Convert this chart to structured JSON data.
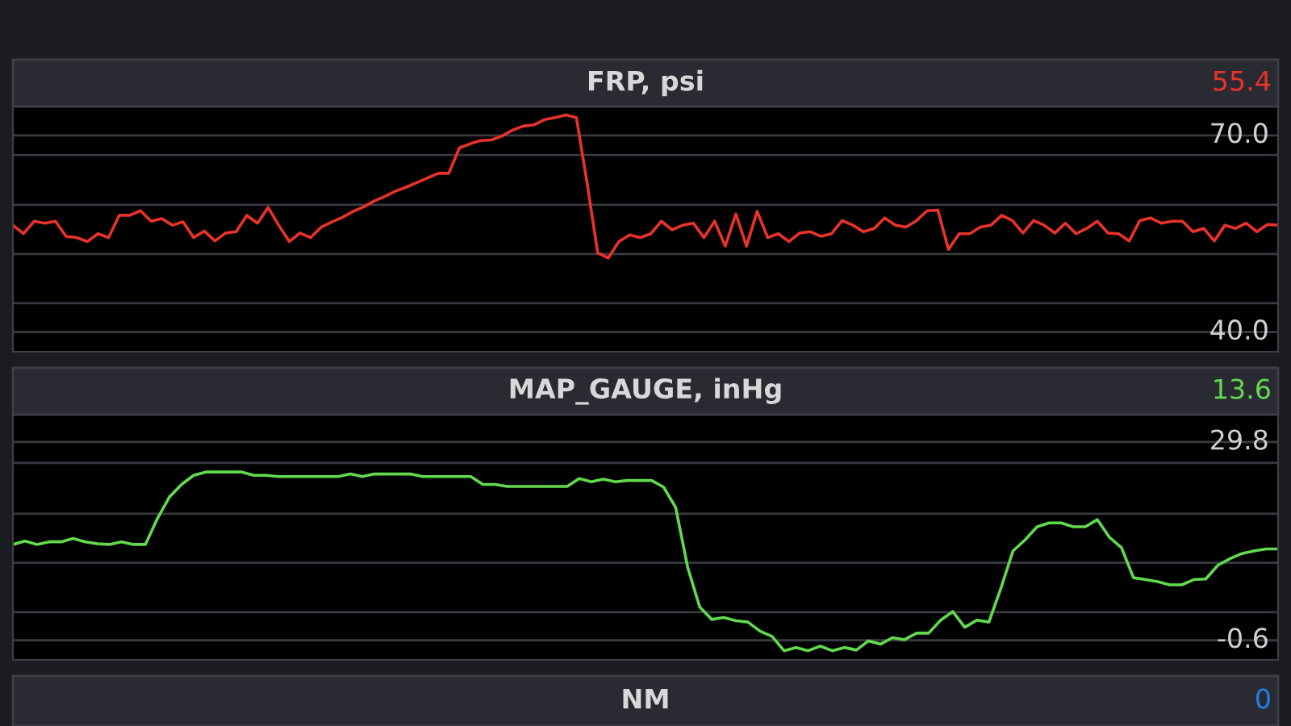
{
  "chart_data": [
    {
      "type": "line",
      "title": "FRP, psi",
      "annotations": [
        "55.4"
      ],
      "categories": [
        null,
        null,
        null,
        null,
        null,
        null,
        null,
        null,
        null,
        null,
        null,
        null,
        null,
        null,
        null,
        null,
        null,
        null,
        null,
        null,
        null,
        null,
        null,
        null,
        null,
        null,
        null,
        null,
        null,
        null,
        null,
        null,
        null,
        null,
        null,
        null,
        null,
        null,
        null,
        null,
        null,
        null,
        null,
        null,
        null,
        null,
        null,
        null,
        null,
        null,
        null,
        null,
        null,
        null,
        null,
        null,
        null,
        null,
        null,
        null,
        null,
        null,
        null,
        null,
        null,
        null,
        null,
        null,
        null,
        null,
        null,
        null,
        null,
        null,
        null,
        null,
        null,
        null,
        null,
        null,
        null,
        null,
        null,
        null,
        null,
        null,
        null,
        null,
        null,
        null,
        null,
        null,
        null,
        null,
        null,
        null,
        null,
        null,
        null,
        null,
        null,
        null,
        null,
        null,
        null,
        null,
        null,
        null,
        null,
        null,
        null,
        null,
        null,
        null,
        null,
        null,
        null,
        null,
        null,
        null
      ],
      "series": [
        {
          "color": "#e8322a",
          "values": [
            56.3,
            55.0,
            56.9,
            56.6,
            56.9,
            54.6,
            54.4,
            53.8,
            55.0,
            54.4,
            57.8,
            57.8,
            58.5,
            56.9,
            57.3,
            56.3,
            56.8,
            54.4,
            55.4,
            53.9,
            55.1,
            55.3,
            57.8,
            56.6,
            59.0,
            56.3,
            53.8,
            55.1,
            54.4,
            56.0,
            56.8,
            57.5,
            58.4,
            59.1,
            60.0,
            60.7,
            61.5,
            62.1,
            62.8,
            63.5,
            64.2,
            64.2,
            68.1,
            68.7,
            69.2,
            69.3,
            69.9,
            70.8,
            71.4,
            71.6,
            72.4,
            72.7,
            73.1,
            72.7,
            62.8,
            52.1,
            51.3,
            53.8,
            54.8,
            54.4,
            55.0,
            56.9,
            55.6,
            56.3,
            56.6,
            54.4,
            56.9,
            53.1,
            58.0,
            53.1,
            58.4,
            54.4,
            55.0,
            53.8,
            55.1,
            55.3,
            54.6,
            55.0,
            57.0,
            56.3,
            55.3,
            55.8,
            57.4,
            56.3,
            56.0,
            57.0,
            58.5,
            58.6,
            52.6,
            55.0,
            55.0,
            56.0,
            56.3,
            57.8,
            57.0,
            55.1,
            57.0,
            56.3,
            55.1,
            56.6,
            55.0,
            55.8,
            56.9,
            55.1,
            55.0,
            53.9,
            57.0,
            57.4,
            56.6,
            56.9,
            56.9,
            55.3,
            55.8,
            53.9,
            56.3,
            55.8,
            56.6,
            55.3,
            56.4,
            56.3
          ]
        }
      ],
      "ylim": [
        37.0,
        74.4
      ],
      "yticks": [
        {
          "value": 40,
          "label": "40.0"
        },
        {
          "value": 44.4,
          "label": null
        },
        {
          "value": 51.9,
          "label": null
        },
        {
          "value": 59.4,
          "label": null
        },
        {
          "value": 67.0,
          "label": null
        },
        {
          "value": 70,
          "label": "70.0"
        }
      ],
      "grid": "y",
      "tick_labels": "y",
      "marker": "none",
      "line_style": "solid"
    },
    {
      "type": "line",
      "title": "MAP_GAUGE, inHg",
      "annotations": [
        "13.6"
      ],
      "categories": [
        null,
        null,
        null,
        null,
        null,
        null,
        null,
        null,
        null,
        null,
        null,
        null,
        null,
        null,
        null,
        null,
        null,
        null,
        null,
        null,
        null,
        null,
        null,
        null,
        null,
        null,
        null,
        null,
        null,
        null,
        null,
        null,
        null,
        null,
        null,
        null,
        null,
        null,
        null,
        null,
        null,
        null,
        null,
        null,
        null,
        null,
        null,
        null,
        null,
        null,
        null,
        null,
        null,
        null,
        null,
        null,
        null,
        null,
        null,
        null,
        null,
        null,
        null,
        null,
        null,
        null,
        null,
        null,
        null,
        null,
        null,
        null,
        null,
        null,
        null,
        null,
        null,
        null,
        null,
        null,
        null,
        null,
        null,
        null,
        null,
        null,
        null,
        null,
        null,
        null,
        null,
        null,
        null,
        null,
        null,
        null,
        null,
        null,
        null,
        null,
        null,
        null,
        null,
        null,
        null,
        null
      ],
      "series": [
        {
          "color": "#62d94e",
          "values": [
            14.1,
            14.6,
            14.1,
            14.5,
            14.5,
            15.0,
            14.5,
            14.2,
            14.1,
            14.5,
            14.1,
            14.1,
            18.1,
            21.4,
            23.3,
            24.7,
            25.2,
            25.2,
            25.2,
            25.2,
            24.7,
            24.7,
            24.5,
            24.5,
            24.5,
            24.5,
            24.5,
            24.5,
            24.9,
            24.5,
            24.9,
            24.9,
            24.9,
            24.9,
            24.5,
            24.5,
            24.5,
            24.5,
            24.5,
            23.3,
            23.3,
            23.0,
            23.0,
            23.0,
            23.0,
            23.0,
            23.0,
            24.2,
            23.7,
            24.1,
            23.7,
            23.9,
            23.9,
            23.9,
            22.9,
            19.8,
            10.6,
            4.5,
            2.6,
            2.9,
            2.4,
            2.2,
            0.8,
            0.0,
            -2.2,
            -1.7,
            -2.2,
            -1.5,
            -2.2,
            -1.7,
            -2.1,
            -0.7,
            -1.2,
            -0.2,
            -0.5,
            0.5,
            0.5,
            2.5,
            3.8,
            1.4,
            2.5,
            2.2,
            7.4,
            13.1,
            14.8,
            16.8,
            17.4,
            17.4,
            16.8,
            16.8,
            17.9,
            15.2,
            13.6,
            9.0,
            8.7,
            8.4,
            7.9,
            7.9,
            8.7,
            8.8,
            10.9,
            11.9,
            12.7,
            13.1,
            13.4,
            13.4
          ]
        }
      ],
      "ylim": [
        -3.6,
        34.0
      ],
      "yticks": [
        {
          "value": -0.6,
          "label": "-0.6"
        },
        {
          "value": 3.7,
          "label": null
        },
        {
          "value": 11.3,
          "label": null
        },
        {
          "value": 18.8,
          "label": null
        },
        {
          "value": 26.6,
          "label": null
        },
        {
          "value": 29.8,
          "label": "29.8"
        }
      ],
      "grid": "y",
      "tick_labels": "y",
      "marker": "none",
      "line_style": "solid"
    },
    {
      "type": "other",
      "title": "NM",
      "annotations": [
        "0"
      ]
    }
  ]
}
